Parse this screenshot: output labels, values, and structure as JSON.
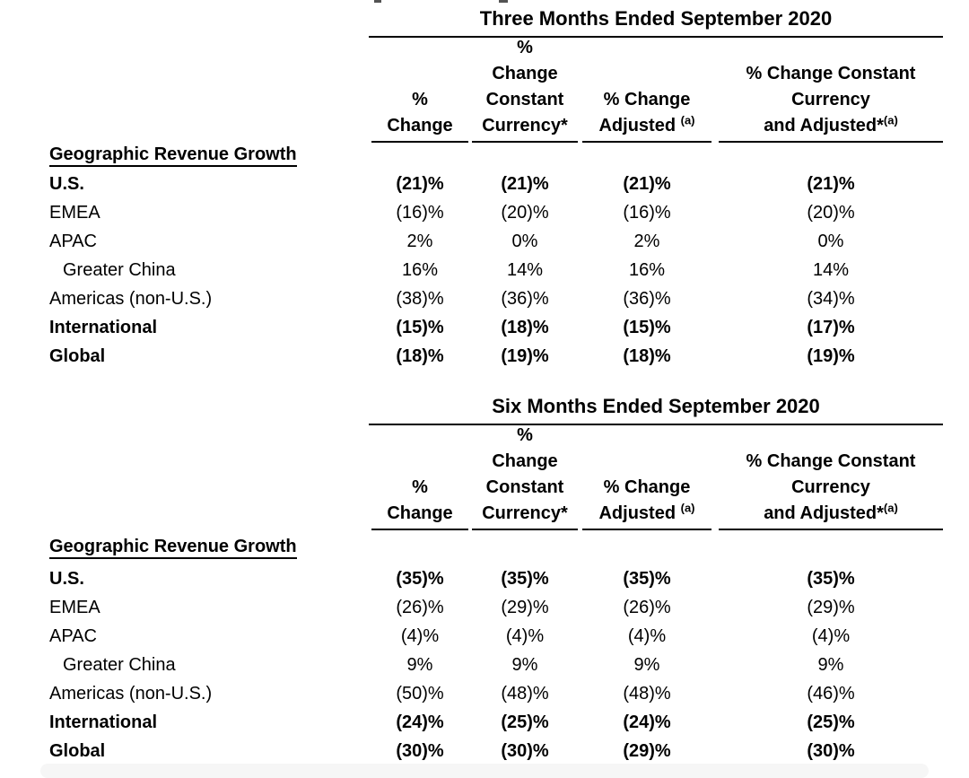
{
  "document": {
    "text_color": "#000000",
    "rule_color": "#000000",
    "background_color": "#ffffff",
    "bottom_bar_color": "#f6f6f6"
  },
  "tables": [
    {
      "title": "Three Months Ended September 2020",
      "section_label": "Geographic Revenue Growth",
      "columns": [
        {
          "lines": [
            "%",
            "Change"
          ]
        },
        {
          "lines": [
            "%",
            "Change",
            "Constant",
            "Currency*"
          ]
        },
        {
          "lines": [
            "% Change"
          ],
          "last_line": "Adjusted ",
          "sup": "(a)"
        },
        {
          "lines": [
            "% Change Constant",
            "Currency"
          ],
          "last_line": "and Adjusted*",
          "sup": "(a)"
        }
      ],
      "rows": [
        {
          "label": "U.S.",
          "values": [
            "(21)%",
            "(21)%",
            "(21)%",
            "(21)%"
          ]
        },
        {
          "label": "EMEA",
          "values": [
            "(16)%",
            "(20)%",
            "(16)%",
            "(20)%"
          ]
        },
        {
          "label": "APAC",
          "values": [
            "2%",
            "0%",
            "2%",
            "0%"
          ]
        },
        {
          "label": "Greater China",
          "values": [
            "16%",
            "14%",
            "16%",
            "14%"
          ]
        },
        {
          "label": "Americas (non-U.S.)",
          "values": [
            "(38)%",
            "(36)%",
            "(36)%",
            "(34)%"
          ]
        },
        {
          "label": "International",
          "values": [
            "(15)%",
            "(18)%",
            "(15)%",
            "(17)%"
          ]
        },
        {
          "label": "Global",
          "values": [
            "(18)%",
            "(19)%",
            "(18)%",
            "(19)%"
          ]
        }
      ]
    },
    {
      "title": "Six Months Ended September 2020",
      "section_label": "Geographic Revenue Growth",
      "columns": [
        {
          "lines": [
            "%",
            "Change"
          ]
        },
        {
          "lines": [
            "%",
            "Change",
            "Constant",
            "Currency*"
          ]
        },
        {
          "lines": [
            "% Change"
          ],
          "last_line": "Adjusted ",
          "sup": "(a)"
        },
        {
          "lines": [
            "% Change Constant",
            "Currency"
          ],
          "last_line": "and Adjusted*",
          "sup": "(a)"
        }
      ],
      "rows": [
        {
          "label": "U.S.",
          "values": [
            "(35)%",
            "(35)%",
            "(35)%",
            "(35)%"
          ]
        },
        {
          "label": "EMEA",
          "values": [
            "(26)%",
            "(29)%",
            "(26)%",
            "(29)%"
          ]
        },
        {
          "label": "APAC",
          "values": [
            "(4)%",
            "(4)%",
            "(4)%",
            "(4)%"
          ]
        },
        {
          "label": "Greater China",
          "values": [
            "9%",
            "9%",
            "9%",
            "9%"
          ]
        },
        {
          "label": "Americas (non-U.S.)",
          "values": [
            "(50)%",
            "(48)%",
            "(48)%",
            "(46)%"
          ]
        },
        {
          "label": "International",
          "values": [
            "(24)%",
            "(25)%",
            "(24)%",
            "(25)%"
          ]
        },
        {
          "label": "Global",
          "values": [
            "(30)%",
            "(30)%",
            "(29)%",
            "(30)%"
          ]
        }
      ]
    }
  ]
}
